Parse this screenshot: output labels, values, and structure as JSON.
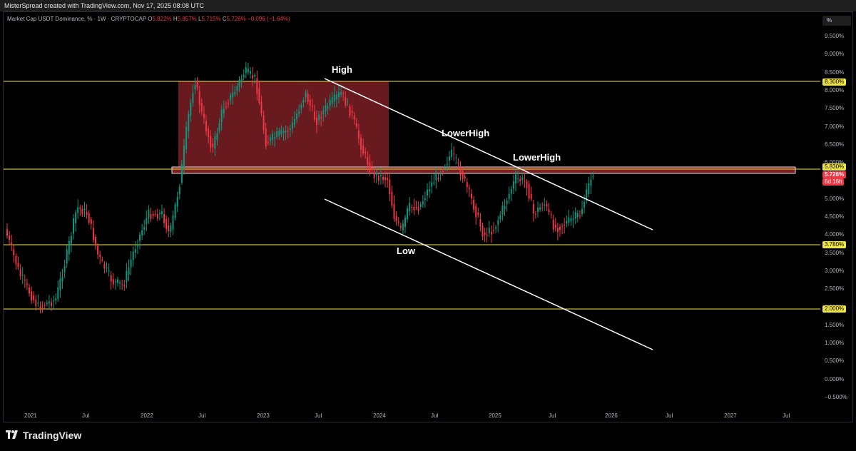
{
  "header": {
    "attribution": "MisterSpread created with TradingView.com, Nov 17, 2025 08:08 UTC"
  },
  "legend": {
    "symbol": "Market Cap USDT Dominance, % · 1W · CRYPTOCAP",
    "o_label": "O",
    "o_value": "5.822%",
    "h_label": "H",
    "h_value": "5.857%",
    "l_label": "L",
    "l_value": "5.715%",
    "c_label": "C",
    "c_value": "5.726%",
    "change": "−0.096 (−1.64%)"
  },
  "axis": {
    "unit_button": "%",
    "price_ticks": [
      "9.500%",
      "9.000%",
      "8.500%",
      "8.000%",
      "7.500%",
      "7.000%",
      "6.500%",
      "6.000%",
      "5.500%",
      "5.000%",
      "4.500%",
      "4.000%",
      "3.500%",
      "3.000%",
      "2.500%",
      "2.000%",
      "1.500%",
      "1.000%",
      "0.500%",
      "0.000%",
      "−0.500%"
    ],
    "time_ticks": [
      "2021",
      "Jul",
      "2022",
      "Jul",
      "2023",
      "Jul",
      "2024",
      "Jul",
      "2025",
      "Jul",
      "2026",
      "Jul",
      "2027",
      "Jul"
    ]
  },
  "levels": {
    "l1": "8.300%",
    "l2": "5.830%",
    "current": "5.726%",
    "countdown": "6d 16h",
    "l3": "3.780%",
    "l4": "2.000%"
  },
  "annotations": {
    "high": "High",
    "lower_high_1": "LowerHigh",
    "lower_high_2": "LowerHigh",
    "low": "Low"
  },
  "footer": {
    "brand": "TradingView"
  },
  "colors": {
    "up": "#089981",
    "down": "#f23645",
    "level": "#f0e442",
    "zone": "#7a1f24",
    "line": "#ffffff"
  }
}
